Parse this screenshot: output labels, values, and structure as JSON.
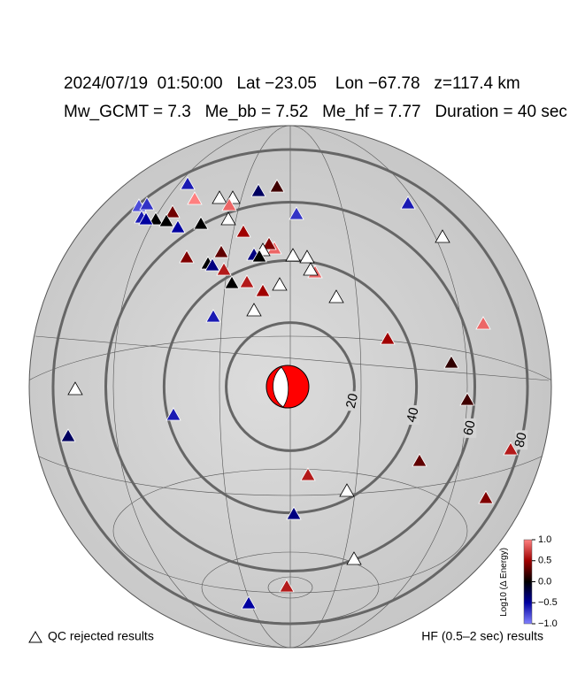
{
  "header": {
    "line1": "2024/07/19  01:50:00   Lat −23.05    Lon −67.78   z=117.4 km",
    "line2": "Mw_GCMT = 7.3   Me_bb = 7.52   Me_hf = 7.77   Duration = 40 sec"
  },
  "rings": [
    20,
    40,
    60,
    80
  ],
  "stations": {
    "values": [
      -0.6,
      1.0,
      null,
      null,
      -0.3,
      0.2,
      -0.8,
      -0.7,
      0.35,
      0,
      -0.6,
      -0.5,
      0,
      -0.5,
      0,
      null,
      0.9,
      0.5,
      -0.7,
      -0.6,
      null,
      0.9,
      0.4,
      null,
      -0.4,
      0,
      null,
      null,
      0.4,
      0,
      0.3,
      -0.4,
      0.6,
      0.9,
      null,
      0,
      0.6,
      0.5,
      null,
      null,
      null,
      -0.6,
      0.9,
      0.5,
      0.15,
      0.2,
      null,
      -0.6,
      -0.3,
      0.6,
      0.3,
      0.6,
      null,
      0.4,
      -0.4,
      null,
      0.6,
      -0.5
    ]
  },
  "colorbar": {
    "label": "Log10 (Δ Energy)",
    "lim": [
      -1,
      1
    ],
    "ticks": [
      {
        "value": 1,
        "label": "1.0"
      },
      0.5,
      {
        "value": 0,
        "label": "0.0"
      },
      {
        "value": -0.5,
        "label": "−0.5"
      },
      {
        "value": -1,
        "label": "−1.0"
      }
    ]
  },
  "legend": {
    "qc": "QC rejected results",
    "hf": "HF (0.5–2 sec) results"
  }
}
